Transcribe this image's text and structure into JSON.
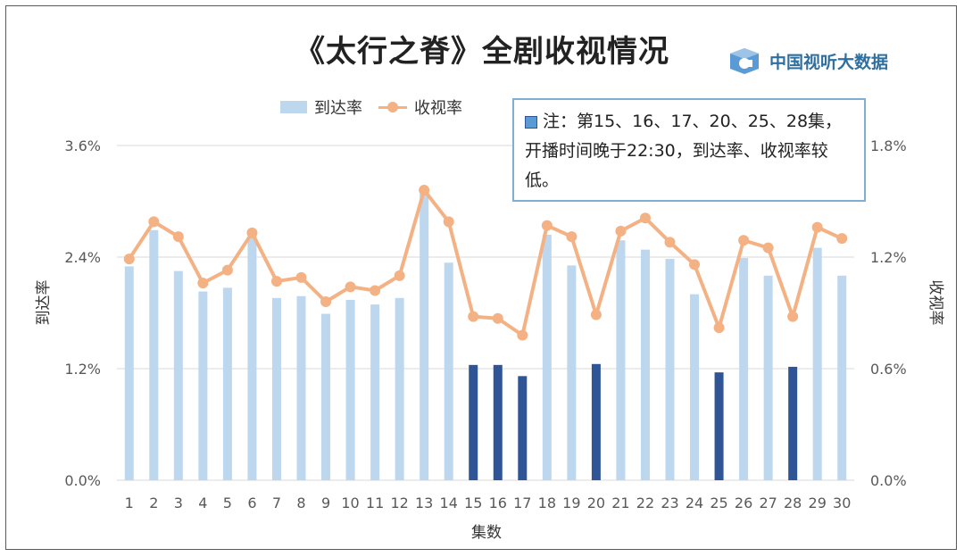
{
  "title": "《太行之脊》全剧收视情况",
  "brand": {
    "name": "中国视听大数据"
  },
  "note": {
    "text": "注：第15、16、17、20、25、28集，开播时间晚于22:30，到达率、收视率较低。"
  },
  "colors": {
    "bar": "#bdd7ee",
    "bar_late": "#2f5597",
    "line": "#f4b183",
    "gridline": "#d9d9d9"
  },
  "chart_data": {
    "type": "bar+line",
    "xlabel": "集数",
    "ylabel_left": "到达率",
    "ylabel_right": "收视率",
    "categories": [
      "1",
      "2",
      "3",
      "4",
      "5",
      "6",
      "7",
      "8",
      "9",
      "10",
      "11",
      "12",
      "13",
      "14",
      "15",
      "16",
      "17",
      "18",
      "19",
      "20",
      "21",
      "22",
      "23",
      "24",
      "25",
      "26",
      "27",
      "28",
      "29",
      "30"
    ],
    "left_ticks": [
      "0.0%",
      "1.2%",
      "2.4%",
      "3.6%"
    ],
    "right_ticks": [
      "0.0%",
      "0.6%",
      "1.2%",
      "1.8%"
    ],
    "ylim_left": [
      0,
      3.6
    ],
    "ylim_right": [
      0,
      1.8
    ],
    "grid": true,
    "legend_position": "top",
    "late_episodes": [
      "15",
      "16",
      "17",
      "20",
      "25",
      "28"
    ],
    "series": [
      {
        "name": "到达率",
        "type": "bar",
        "axis": "left",
        "values": [
          2.3,
          2.69,
          2.25,
          2.03,
          2.07,
          2.62,
          1.96,
          1.98,
          1.79,
          1.94,
          1.89,
          1.96,
          3.08,
          2.34,
          1.24,
          1.24,
          1.12,
          2.64,
          2.31,
          1.25,
          2.58,
          2.48,
          2.38,
          2.0,
          1.16,
          2.39,
          2.2,
          1.22,
          2.5,
          2.2
        ]
      },
      {
        "name": "收视率",
        "type": "line",
        "axis": "right",
        "values": [
          1.19,
          1.39,
          1.31,
          1.06,
          1.13,
          1.33,
          1.07,
          1.09,
          0.96,
          1.04,
          1.02,
          1.1,
          1.56,
          1.39,
          0.88,
          0.87,
          0.78,
          1.37,
          1.31,
          0.89,
          1.34,
          1.41,
          1.28,
          1.16,
          0.82,
          1.29,
          1.25,
          0.88,
          1.36,
          1.3
        ]
      }
    ]
  }
}
